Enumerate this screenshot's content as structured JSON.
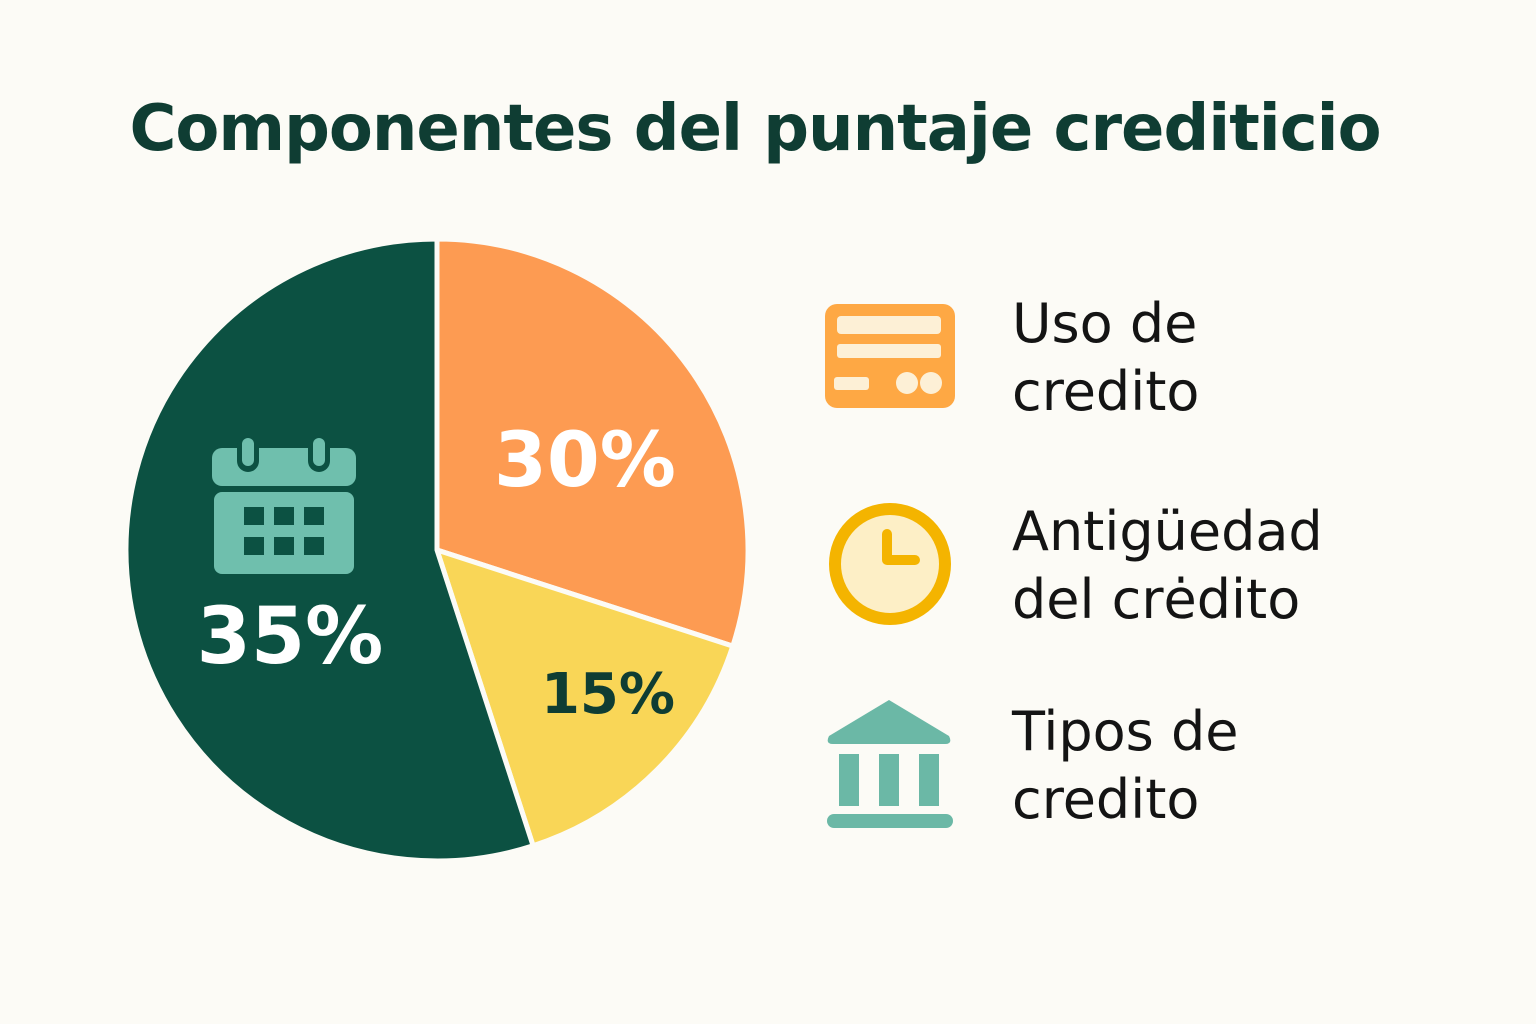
{
  "chart_data": {
    "type": "pie",
    "title": "Componentes del puntaje crediticio",
    "slices": [
      {
        "label": "30%",
        "value": 30,
        "color": "#fd9b52",
        "label_color": "#ffffff",
        "category": "Uso de credito"
      },
      {
        "label": "15%",
        "value": 15,
        "color": "#f9d657",
        "label_color": "#0f3d33",
        "category": "Antigüedad del crėdito"
      },
      {
        "label": "35%",
        "value": 35,
        "color": "#0c5142",
        "label_color": "#ffffff",
        "category": "Tipos de credito",
        "icon": "calendar-icon"
      }
    ]
  },
  "legend": [
    {
      "label": "Uso de\ncredito",
      "icon": "credit-card-icon",
      "color": "#fea844"
    },
    {
      "label": "Antigüedad\ndel crėdito",
      "icon": "clock-icon",
      "color": "#f4b400"
    },
    {
      "label": "Tipos de\ncredito",
      "icon": "bank-icon",
      "color": "#6bb8a6"
    }
  ]
}
